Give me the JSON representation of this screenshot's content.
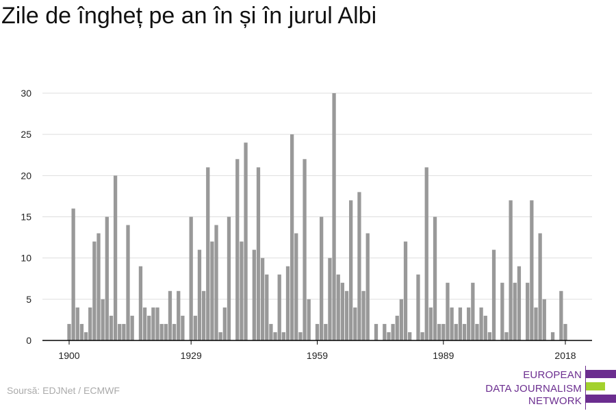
{
  "title": "Zile de îngheț pe an în și în jurul Albi",
  "source": "Soursă: EDJNet / ECMWF",
  "logo": {
    "lines": [
      "EUROPEAN",
      "DATA JOURNALISM",
      "NETWORK"
    ],
    "colors": {
      "purple": "#6b2d8f",
      "green": "#a3d12d"
    }
  },
  "colors": {
    "bar": "#999999",
    "grid": "#dddddd",
    "axis": "#000000"
  },
  "chart_data": {
    "type": "bar",
    "title": "Zile de îngheț pe an în și în jurul Albi",
    "xlabel": "",
    "ylabel": "",
    "x_ticks": [
      1900,
      1929,
      1959,
      1989,
      2018
    ],
    "y_ticks": [
      0,
      5,
      10,
      15,
      20,
      25,
      30
    ],
    "ylim": [
      0,
      30
    ],
    "grid": true,
    "categories": [
      1900,
      1901,
      1902,
      1903,
      1904,
      1905,
      1906,
      1907,
      1908,
      1909,
      1910,
      1911,
      1912,
      1913,
      1914,
      1915,
      1916,
      1917,
      1918,
      1919,
      1920,
      1921,
      1922,
      1923,
      1924,
      1925,
      1926,
      1927,
      1928,
      1929,
      1930,
      1931,
      1932,
      1933,
      1934,
      1935,
      1936,
      1937,
      1938,
      1939,
      1940,
      1941,
      1942,
      1943,
      1944,
      1945,
      1946,
      1947,
      1948,
      1949,
      1950,
      1951,
      1952,
      1953,
      1954,
      1955,
      1956,
      1957,
      1958,
      1959,
      1960,
      1961,
      1962,
      1963,
      1964,
      1965,
      1966,
      1967,
      1968,
      1969,
      1970,
      1971,
      1972,
      1973,
      1974,
      1975,
      1976,
      1977,
      1978,
      1979,
      1980,
      1981,
      1982,
      1983,
      1984,
      1985,
      1986,
      1987,
      1988,
      1989,
      1990,
      1991,
      1992,
      1993,
      1994,
      1995,
      1996,
      1997,
      1998,
      1999,
      2000,
      2001,
      2002,
      2003,
      2004,
      2005,
      2006,
      2007,
      2008,
      2009,
      2010,
      2011,
      2012,
      2013,
      2014,
      2015,
      2016,
      2017,
      2018,
      2019,
      2020,
      2021,
      2022
    ],
    "values": [
      2,
      16,
      4,
      2,
      1,
      4,
      12,
      13,
      5,
      15,
      3,
      20,
      2,
      2,
      14,
      3,
      0,
      9,
      4,
      3,
      4,
      4,
      2,
      2,
      6,
      2,
      6,
      3,
      0,
      15,
      3,
      11,
      6,
      21,
      12,
      14,
      1,
      4,
      15,
      0,
      22,
      12,
      24,
      0,
      11,
      21,
      10,
      8,
      2,
      1,
      8,
      1,
      9,
      25,
      13,
      1,
      22,
      5,
      0,
      2,
      15,
      2,
      10,
      30,
      8,
      7,
      6,
      17,
      4,
      18,
      6,
      13,
      0,
      2,
      0,
      2,
      1,
      2,
      3,
      5,
      12,
      1,
      0,
      8,
      1,
      21,
      4,
      15,
      2,
      2,
      7,
      4,
      2,
      4,
      2,
      4,
      7,
      2,
      4,
      3,
      1,
      11,
      0,
      7,
      1,
      17,
      7,
      9,
      0,
      7,
      17,
      4,
      13,
      5,
      0,
      1,
      0,
      6,
      2,
      0,
      0,
      0,
      0
    ]
  }
}
